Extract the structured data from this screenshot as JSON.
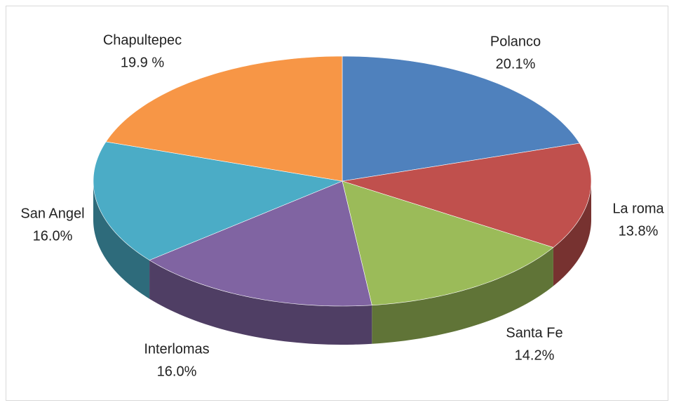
{
  "chart_data": {
    "type": "pie",
    "categories": [
      "Polanco",
      "La roma",
      "Santa Fe",
      "Interlomas",
      "San Angel",
      "Chapultepec"
    ],
    "values": [
      20.1,
      13.8,
      14.2,
      16.0,
      16.0,
      19.9
    ],
    "value_labels": [
      "20.1%",
      "13.8%",
      "14.2%",
      "16.0%",
      "16.0%",
      "19.9 %"
    ],
    "colors": [
      "#4f81bd",
      "#c0504d",
      "#9bbb59",
      "#8064a2",
      "#4bacc6",
      "#f79646"
    ]
  }
}
